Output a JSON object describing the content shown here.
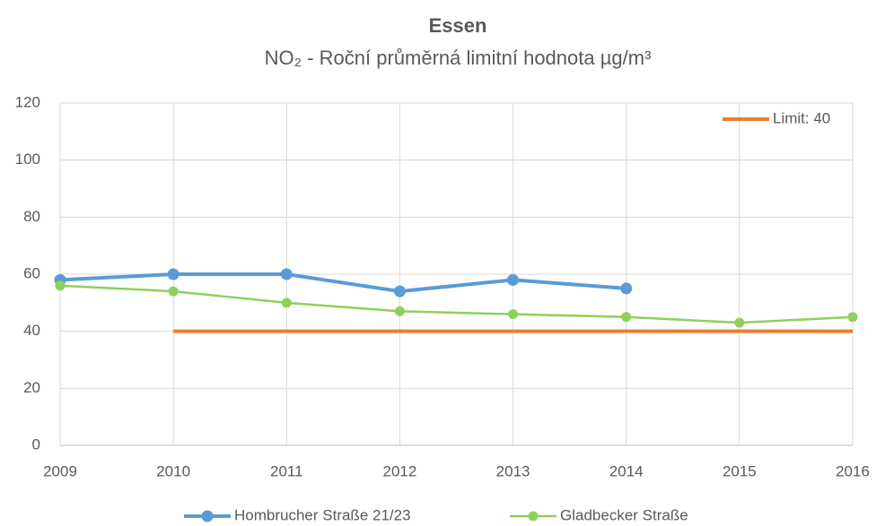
{
  "chart_data": {
    "type": "line",
    "title": "Essen",
    "subtitle": "NO₂ - Roční průměrná limitní hodnota µg/m³",
    "x": [
      2009,
      2010,
      2011,
      2012,
      2013,
      2014,
      2015,
      2016
    ],
    "xlim": [
      2009,
      2016
    ],
    "xticks": [
      2009,
      2010,
      2011,
      2012,
      2013,
      2014,
      2015,
      2016
    ],
    "ylim": [
      0,
      120
    ],
    "yticks": [
      0,
      20,
      40,
      60,
      80,
      100,
      120
    ],
    "grid": true,
    "series": [
      {
        "name": "Hombrucher Straße 21/23",
        "color": "#5b9bd5",
        "values": [
          58,
          60,
          60,
          54,
          58,
          55,
          null,
          null
        ],
        "markers": true,
        "legend": "bottom"
      },
      {
        "name": "Gladbecker Straße",
        "color": "#8fd05c",
        "values": [
          56,
          54,
          50,
          47,
          46,
          45,
          43,
          45
        ],
        "markers": true,
        "legend": "bottom"
      },
      {
        "name": "Limit: 40",
        "color": "#ed7d31",
        "values": [
          null,
          40,
          40,
          40,
          40,
          40,
          40,
          40
        ],
        "markers": false,
        "legend": "top-right"
      }
    ]
  }
}
